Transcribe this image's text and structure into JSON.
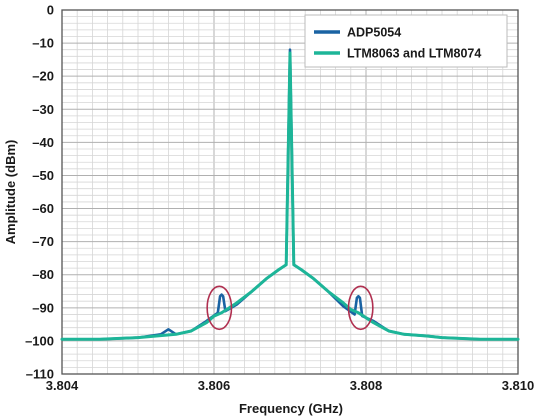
{
  "chart_data": {
    "type": "line",
    "xlabel": "Frequency (GHz)",
    "ylabel": "Amplitude (dBm)",
    "xlim": [
      3.804,
      3.81
    ],
    "ylim": [
      -110,
      0
    ],
    "x_ticks": [
      3.804,
      3.806,
      3.808,
      3.81
    ],
    "x_tick_labels": [
      "3.804",
      "3.806",
      "3.808",
      "3.810"
    ],
    "y_ticks": [
      0,
      -10,
      -20,
      -30,
      -40,
      -50,
      -60,
      -70,
      -80,
      -90,
      -100,
      -110
    ],
    "y_tick_labels": [
      "0",
      "–10",
      "–20",
      "–30",
      "–40",
      "–50",
      "–60",
      "–70",
      "–80",
      "–90",
      "–100",
      "–110"
    ],
    "grid": true,
    "legend_position": "top-right",
    "colors": {
      "ADP5054": "#1a63a3",
      "LTM8063 and LTM8074": "#1db598",
      "annotation": "#b03050"
    },
    "series": [
      {
        "name": "ADP5054",
        "x": [
          3.804,
          3.8045,
          3.805,
          3.8053,
          3.8054,
          3.8055,
          3.8057,
          3.8059,
          3.80605,
          3.80608,
          3.8061,
          3.80612,
          3.80615,
          3.8063,
          3.8065,
          3.8067,
          3.80685,
          3.80695,
          3.807,
          3.80705,
          3.80715,
          3.8073,
          3.8075,
          3.8077,
          3.80785,
          3.80788,
          3.8079,
          3.80792,
          3.80795,
          3.8081,
          3.8083,
          3.8085,
          3.8088,
          3.809,
          3.8095,
          3.81
        ],
        "y": [
          -99.5,
          -99.5,
          -99,
          -98,
          -96.5,
          -98,
          -97,
          -94,
          -91.5,
          -86.5,
          -86,
          -86.5,
          -91,
          -89,
          -85,
          -81,
          -78.5,
          -77,
          -12,
          -77,
          -78.5,
          -81,
          -85,
          -89.5,
          -92,
          -87,
          -86.5,
          -87,
          -92.5,
          -94,
          -97,
          -98,
          -98.5,
          -99,
          -99.5,
          -99.5
        ]
      },
      {
        "name": "LTM8063 and LTM8074",
        "x": [
          3.804,
          3.8045,
          3.805,
          3.8055,
          3.8057,
          3.8059,
          3.806,
          3.8061,
          3.8062,
          3.8063,
          3.8065,
          3.8067,
          3.80685,
          3.80695,
          3.807,
          3.80705,
          3.80715,
          3.8073,
          3.8075,
          3.8077,
          3.8078,
          3.8079,
          3.808,
          3.8081,
          3.8083,
          3.8085,
          3.8088,
          3.809,
          3.8095,
          3.81
        ],
        "y": [
          -99.5,
          -99.5,
          -99,
          -98,
          -97,
          -94.5,
          -92.5,
          -91.5,
          -90,
          -88.5,
          -85,
          -81,
          -78.5,
          -77,
          -13,
          -77,
          -78.5,
          -81,
          -85,
          -88.5,
          -90.5,
          -91.5,
          -93,
          -94.5,
          -97,
          -98,
          -98.5,
          -99,
          -99.5,
          -99.5
        ]
      }
    ],
    "annotations": [
      {
        "shape": "ellipse",
        "cx": 3.80607,
        "cy": -90,
        "rx": 0.00016,
        "ry": 6.5
      },
      {
        "shape": "ellipse",
        "cx": 3.80793,
        "cy": -90,
        "rx": 0.00016,
        "ry": 6.5
      }
    ]
  }
}
